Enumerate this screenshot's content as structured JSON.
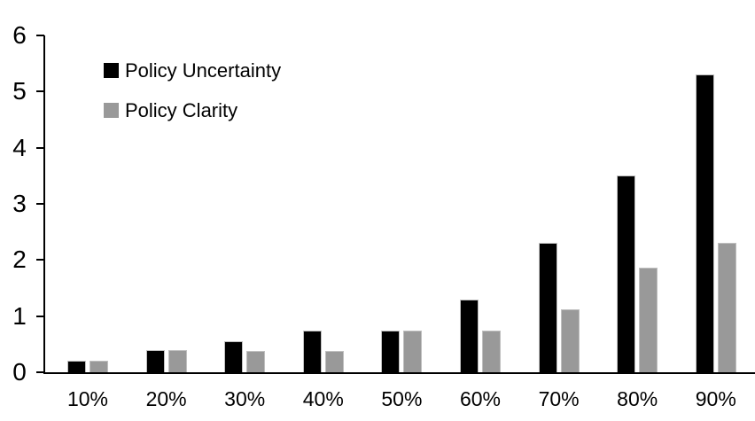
{
  "chart_data": {
    "type": "bar",
    "categories": [
      "10%",
      "20%",
      "30%",
      "40%",
      "50%",
      "60%",
      "70%",
      "80%",
      "90%"
    ],
    "series": [
      {
        "name": "Policy Uncertainty",
        "color": "#000000",
        "values": [
          0.2,
          0.4,
          0.55,
          0.75,
          0.75,
          1.3,
          2.3,
          3.5,
          5.3
        ]
      },
      {
        "name": "Policy Clarity",
        "color": "#999999",
        "values": [
          0.2,
          0.4,
          0.38,
          0.38,
          0.75,
          0.75,
          1.12,
          1.87,
          2.3
        ]
      }
    ],
    "xlabel": "",
    "ylabel": "",
    "ylim": [
      0,
      6
    ],
    "yticks": [
      0,
      1,
      2,
      3,
      4,
      5,
      6
    ],
    "grid": false,
    "legend_position": "top-left-inside"
  },
  "colors": {
    "axis": "#000000",
    "background": "#ffffff",
    "bar_border": "#bfbfbf"
  }
}
